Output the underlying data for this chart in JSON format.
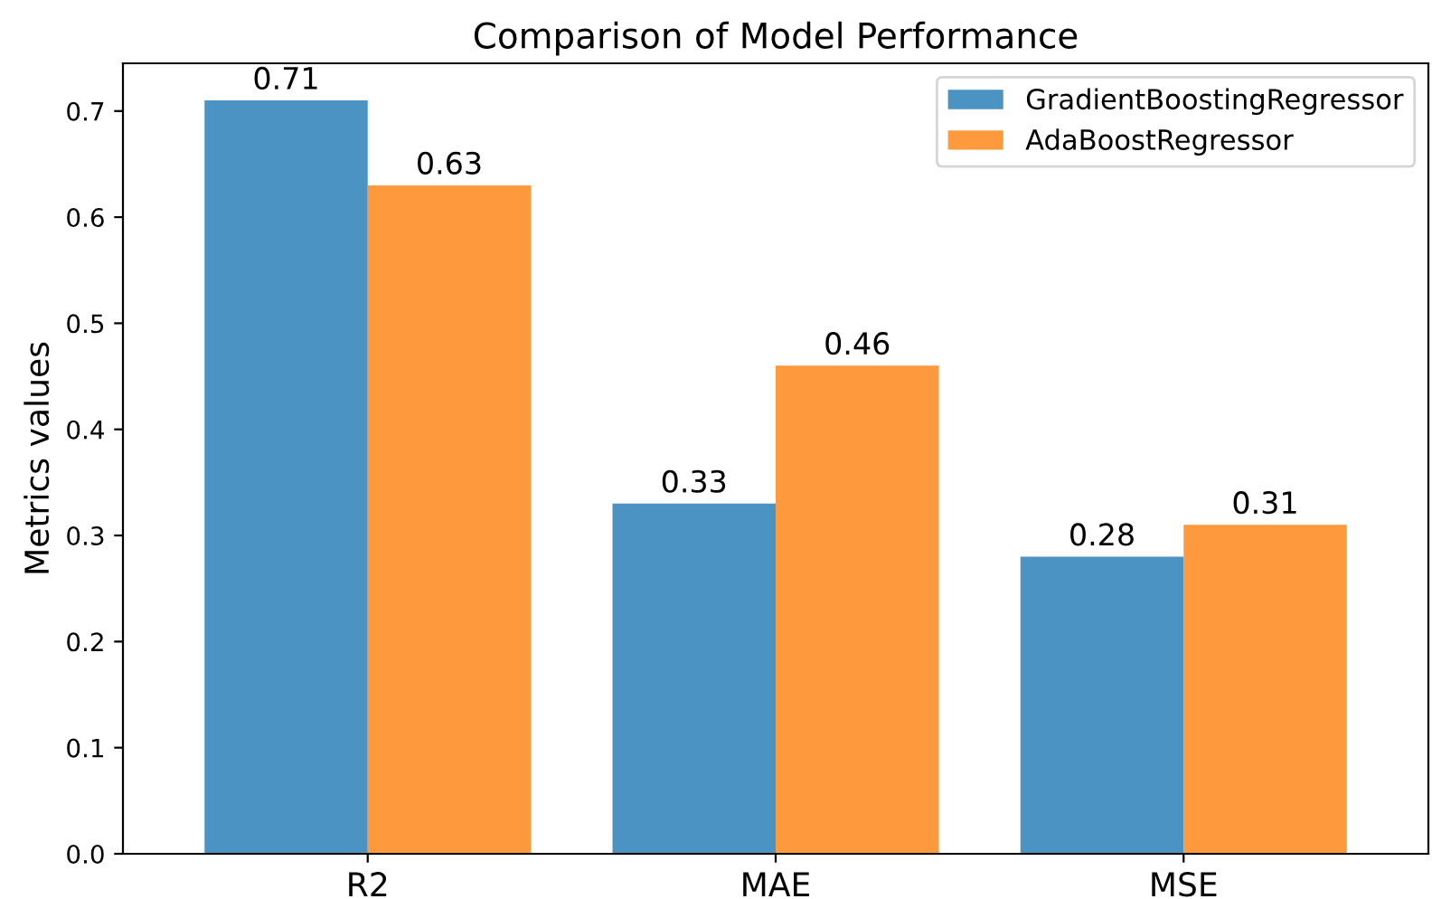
{
  "chart_data": {
    "type": "bar",
    "title": "Comparison of Model Performance",
    "ylabel": "Metrics values",
    "categories": [
      "R2",
      "MAE",
      "MSE"
    ],
    "series": [
      {
        "name": "GradientBoostingRegressor",
        "color": "#4b93c3",
        "values": [
          0.71,
          0.33,
          0.28
        ]
      },
      {
        "name": "AdaBoostRegressor",
        "color": "#ff993e",
        "values": [
          0.63,
          0.46,
          0.31
        ]
      }
    ],
    "ylim": [
      0,
      0.745
    ],
    "yticks": [
      {
        "value": 0,
        "label": "0.0"
      },
      0.1,
      0.2,
      0.3,
      0.4,
      0.5,
      0.6,
      0.7
    ],
    "data_labels": true,
    "legend": "top right",
    "grid": false
  }
}
